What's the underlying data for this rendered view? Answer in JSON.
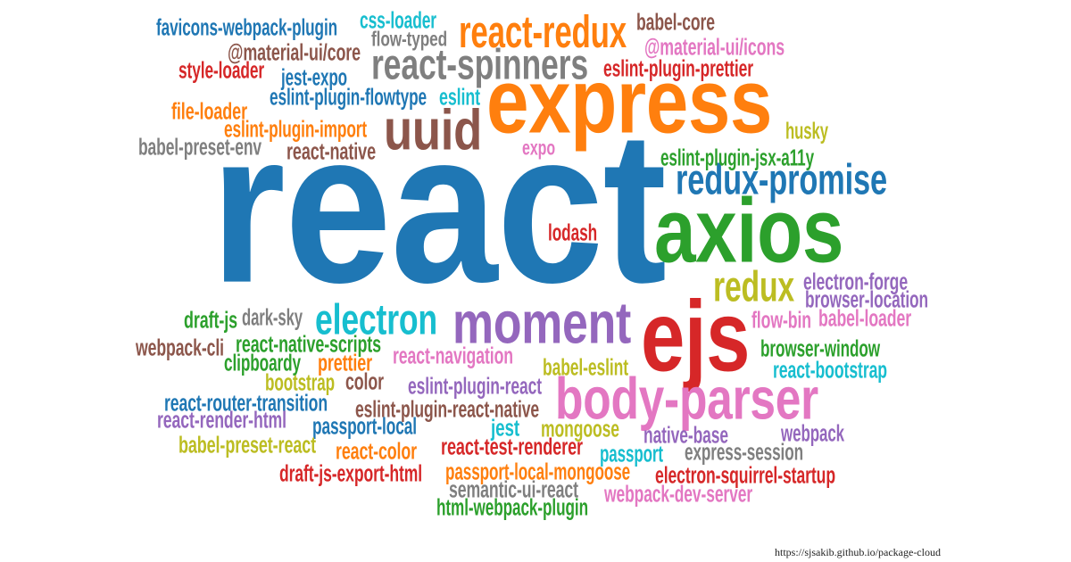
{
  "palette": {
    "blue": "#1f77b4",
    "orange": "#ff7f0e",
    "green": "#2ca02c",
    "red": "#d62728",
    "purple": "#9467bd",
    "brown": "#8c564b",
    "pink": "#e377c2",
    "gray": "#7f7f7f",
    "olive": "#bcbd22",
    "cyan": "#17becf"
  },
  "words": [
    {
      "text": "react",
      "color": "blue"
    },
    {
      "text": "express",
      "color": "orange"
    },
    {
      "text": "axios",
      "color": "green"
    },
    {
      "text": "ejs",
      "color": "red"
    },
    {
      "text": "moment",
      "color": "purple"
    },
    {
      "text": "uuid",
      "color": "brown"
    },
    {
      "text": "body-parser",
      "color": "pink"
    },
    {
      "text": "react-spinners",
      "color": "gray"
    },
    {
      "text": "redux",
      "color": "olive"
    },
    {
      "text": "electron",
      "color": "cyan"
    },
    {
      "text": "redux-promise",
      "color": "blue"
    },
    {
      "text": "react-redux",
      "color": "orange"
    },
    {
      "text": "favicons-webpack-plugin",
      "color": "blue"
    },
    {
      "text": "css-loader",
      "color": "cyan"
    },
    {
      "text": "babel-core",
      "color": "brown"
    },
    {
      "text": "@material-ui/core",
      "color": "brown"
    },
    {
      "text": "flow-typed",
      "color": "gray"
    },
    {
      "text": "@material-ui/icons",
      "color": "pink"
    },
    {
      "text": "style-loader",
      "color": "red"
    },
    {
      "text": "jest-expo",
      "color": "blue"
    },
    {
      "text": "eslint-plugin-prettier",
      "color": "red"
    },
    {
      "text": "eslint-plugin-flowtype",
      "color": "blue"
    },
    {
      "text": "eslint",
      "color": "cyan"
    },
    {
      "text": "file-loader",
      "color": "orange"
    },
    {
      "text": "eslint-plugin-import",
      "color": "orange"
    },
    {
      "text": "husky",
      "color": "olive"
    },
    {
      "text": "babel-preset-env",
      "color": "gray"
    },
    {
      "text": "react-native",
      "color": "brown"
    },
    {
      "text": "expo",
      "color": "pink"
    },
    {
      "text": "eslint-plugin-jsx-a11y",
      "color": "green"
    },
    {
      "text": "lodash",
      "color": "red"
    },
    {
      "text": "electron-forge",
      "color": "purple"
    },
    {
      "text": "browser-location",
      "color": "purple"
    },
    {
      "text": "draft-js",
      "color": "green"
    },
    {
      "text": "dark-sky",
      "color": "gray"
    },
    {
      "text": "flow-bin",
      "color": "pink"
    },
    {
      "text": "babel-loader",
      "color": "pink"
    },
    {
      "text": "webpack-cli",
      "color": "brown"
    },
    {
      "text": "react-native-scripts",
      "color": "green"
    },
    {
      "text": "browser-window",
      "color": "green"
    },
    {
      "text": "clipboardy",
      "color": "green"
    },
    {
      "text": "prettier",
      "color": "orange"
    },
    {
      "text": "react-navigation",
      "color": "pink"
    },
    {
      "text": "babel-eslint",
      "color": "olive"
    },
    {
      "text": "react-bootstrap",
      "color": "cyan"
    },
    {
      "text": "bootstrap",
      "color": "olive"
    },
    {
      "text": "color",
      "color": "brown"
    },
    {
      "text": "eslint-plugin-react",
      "color": "purple"
    },
    {
      "text": "react-router-transition",
      "color": "blue"
    },
    {
      "text": "react-render-html",
      "color": "purple"
    },
    {
      "text": "eslint-plugin-react-native",
      "color": "brown"
    },
    {
      "text": "passport-local",
      "color": "blue"
    },
    {
      "text": "jest",
      "color": "cyan"
    },
    {
      "text": "mongoose",
      "color": "olive"
    },
    {
      "text": "native-base",
      "color": "purple"
    },
    {
      "text": "webpack",
      "color": "purple"
    },
    {
      "text": "babel-preset-react",
      "color": "olive"
    },
    {
      "text": "react-test-renderer",
      "color": "red"
    },
    {
      "text": "react-color",
      "color": "orange"
    },
    {
      "text": "passport",
      "color": "cyan"
    },
    {
      "text": "express-session",
      "color": "gray"
    },
    {
      "text": "draft-js-export-html",
      "color": "red"
    },
    {
      "text": "passport-local-mongoose",
      "color": "orange"
    },
    {
      "text": "electron-squirrel-startup",
      "color": "red"
    },
    {
      "text": "semantic-ui-react",
      "color": "gray"
    },
    {
      "text": "webpack-dev-server",
      "color": "pink"
    },
    {
      "text": "html-webpack-plugin",
      "color": "green"
    }
  ],
  "footer": {
    "url": "https://sjsakib.github.io/package-cloud"
  }
}
